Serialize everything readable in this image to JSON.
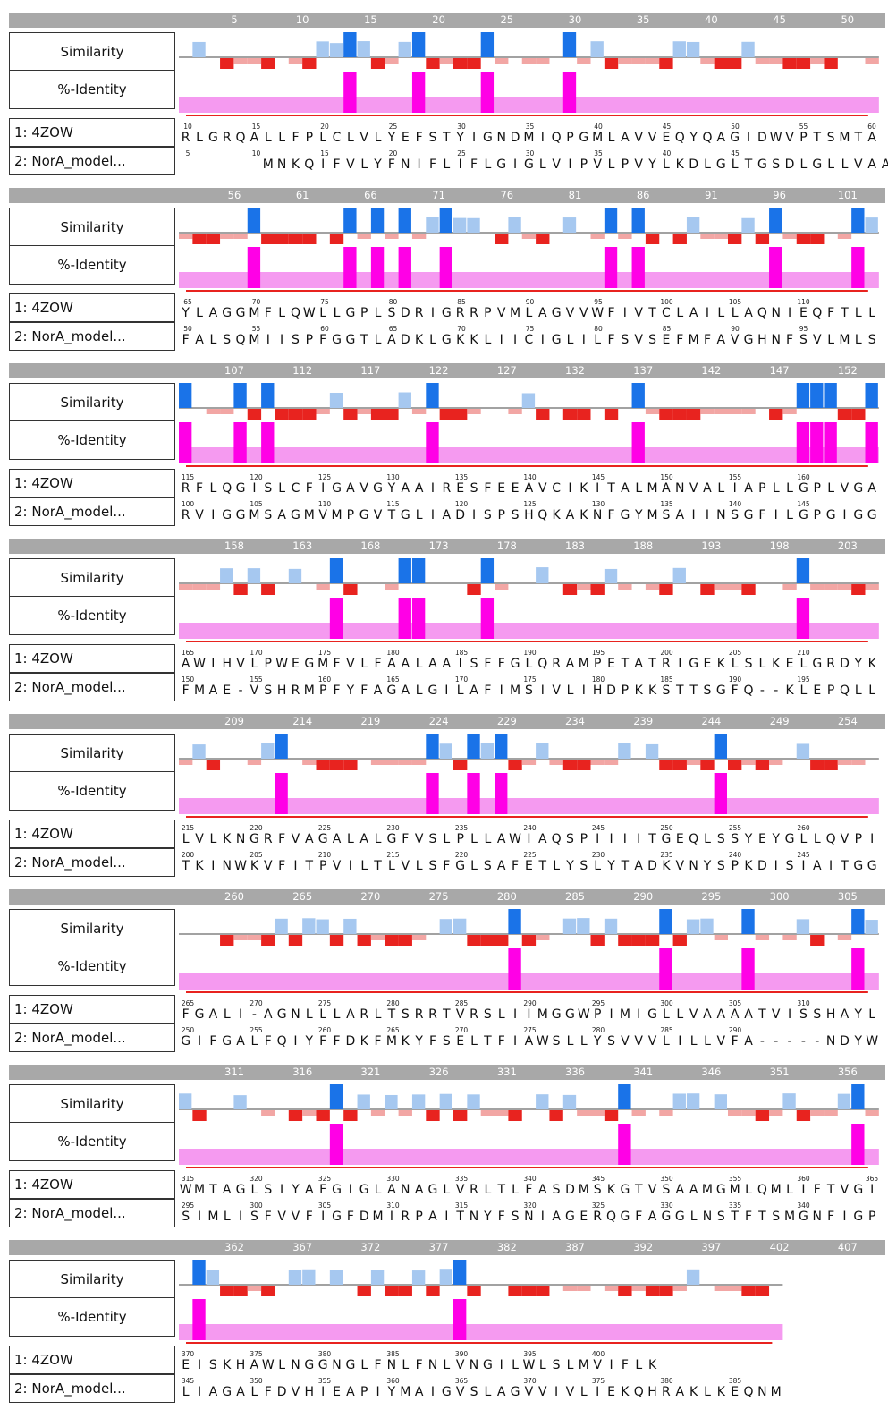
{
  "labels": {
    "similarity": "Similarity",
    "identity": "%-Identity",
    "seq1": "1: 4ZOW",
    "seq2": "2: NorA_model..."
  },
  "colors": {
    "ruler": "#a8a8a8",
    "sim_high": "#1a73e8",
    "sim_low": "#a6c8f0",
    "dissim_high": "#e8231f",
    "dissim_low": "#f2a6a4",
    "identity_bar": "#ff00e6",
    "identity_fill": "#f59af0",
    "ss_helix": "#e8231f",
    "ss_strand": "#1a73e8"
  },
  "blocks": [
    {
      "ruler": [
        "5",
        "10",
        "15",
        "20",
        "25",
        "30",
        "35",
        "40",
        "45",
        "50"
      ],
      "seq1": "RLGRQALLFPLCLVLYEFSTYIGNDMIQPGMLAVVEQYQAGIDWVPTSMTA",
      "seq2": "      MNKQIFVLYFNIFLIFLGIGLVIPVLPVYLKDLGLTGSDLGLLVAA",
      "seq1_ticks": [
        "10",
        "15",
        "20",
        "25",
        "30",
        "35",
        "40",
        "45",
        "50",
        "55",
        "60"
      ],
      "seq2_ticks": [
        "5",
        "10",
        "15",
        "20",
        "25",
        "30",
        "35",
        "40",
        "45"
      ],
      "identity_cols": [
        12,
        17,
        22,
        28
      ]
    },
    {
      "ruler": [
        "56",
        "61",
        "66",
        "71",
        "76",
        "81",
        "86",
        "91",
        "96",
        "101"
      ],
      "seq1": "YLAGGMFLQWLLGPLSDRIGRRPVMLAGVVWFIVTCLAILLAQNIEQFTLL",
      "seq2": "FALSQMIISPFGGTLADKLGKKLIICIGLILFSVSEFMFAVGHNFSVLMLS",
      "seq1_ticks": [
        "65",
        "70",
        "75",
        "80",
        "85",
        "90",
        "95",
        "100",
        "105",
        "110"
      ],
      "seq2_ticks": [
        "50",
        "55",
        "60",
        "65",
        "70",
        "75",
        "80",
        "85",
        "90",
        "95"
      ],
      "identity_cols": [
        5,
        12,
        14,
        16,
        19,
        31,
        33,
        43,
        49
      ]
    },
    {
      "ruler": [
        "107",
        "112",
        "117",
        "122",
        "127",
        "132",
        "137",
        "142",
        "147",
        "152"
      ],
      "seq1": "RFLQGISLCFIGAVGYAAIRESFEEAVCIKITALMANVALIAPLLGPLVGA",
      "seq2": "RVIGGMSAGMVMPGVTGLIADISPSHQKAKNFGYMSAIINSGFILGPGIGG",
      "seq1_ticks": [
        "115",
        "120",
        "125",
        "130",
        "135",
        "140",
        "145",
        "150",
        "155",
        "160"
      ],
      "seq2_ticks": [
        "100",
        "105",
        "110",
        "115",
        "120",
        "125",
        "130",
        "135",
        "140",
        "145"
      ],
      "identity_cols": [
        0,
        4,
        6,
        18,
        33,
        45,
        46,
        47,
        50
      ]
    },
    {
      "ruler": [
        "158",
        "163",
        "168",
        "173",
        "178",
        "183",
        "188",
        "193",
        "198",
        "203"
      ],
      "seq1": "AWIHVLPWEGMFVLFAALAAISFFGLQRAMPETATRIGEKLSLKELGRDYK",
      "seq2": "FMAE-VSHRMPFYFAGALGILAFIMSIVLIHDPKKSTTSGFQ--KLEPQLL",
      "seq1_ticks": [
        "165",
        "170",
        "175",
        "180",
        "185",
        "190",
        "195",
        "200",
        "205",
        "210"
      ],
      "seq2_ticks": [
        "150",
        "155",
        "160",
        "165",
        "170",
        "175",
        "180",
        "185",
        "190",
        "195"
      ],
      "identity_cols": [
        11,
        16,
        17,
        22,
        45
      ]
    },
    {
      "ruler": [
        "209",
        "214",
        "219",
        "224",
        "229",
        "234",
        "239",
        "244",
        "249",
        "254"
      ],
      "seq1": "LVLKNGRFVAGALALGFVSLPLLAWIAQSPIIIITGEQLSSYEYGLLQVPI",
      "seq2": "TKINWKVFITPVILTLVLSFGLSAFETLYSLYTADKVNYSPKDISIAITGG",
      "seq1_ticks": [
        "215",
        "220",
        "225",
        "230",
        "235",
        "240",
        "245",
        "250",
        "255",
        "260"
      ],
      "seq2_ticks": [
        "200",
        "205",
        "210",
        "215",
        "220",
        "225",
        "230",
        "235",
        "240",
        "245"
      ],
      "identity_cols": [
        7,
        18,
        21,
        23,
        39
      ]
    },
    {
      "ruler": [
        "260",
        "265",
        "270",
        "275",
        "280",
        "285",
        "290",
        "295",
        "300",
        "305"
      ],
      "seq1": "FGALI-AGNLLLARLTSRRTVRSLIIMGGWPIMIGLLVAAAATVISSHAYL",
      "seq2": "GIFGALFQIYFFDKFMKYFSELTFIAWSLLYSVVVLILLVFA-----NDYW",
      "seq1_ticks": [
        "265",
        "270",
        "275",
        "280",
        "285",
        "290",
        "295",
        "300",
        "305",
        "310"
      ],
      "seq2_ticks": [
        "250",
        "255",
        "260",
        "265",
        "270",
        "275",
        "280",
        "285",
        "290"
      ],
      "identity_cols": [
        24,
        35,
        41,
        49
      ]
    },
    {
      "ruler": [
        "311",
        "316",
        "321",
        "326",
        "331",
        "336",
        "341",
        "346",
        "351",
        "356"
      ],
      "seq1": "WMTAGLSIYAFGIGLANAGLVRLTLFASDMSKGTVSAAMGMLQMLIFTVGI",
      "seq2": "SIMLISFVVFIGFDMIRPAITNYFSNIAGERQGFAGGLNSTFTSMGNFIGP",
      "seq1_ticks": [
        "315",
        "320",
        "325",
        "330",
        "335",
        "340",
        "345",
        "350",
        "355",
        "360",
        "365"
      ],
      "seq2_ticks": [
        "295",
        "300",
        "305",
        "310",
        "315",
        "320",
        "325",
        "330",
        "335",
        "340"
      ],
      "identity_cols": [
        11,
        32,
        49
      ]
    },
    {
      "ruler": [
        "362",
        "367",
        "372",
        "377",
        "382",
        "387",
        "392",
        "397",
        "402",
        "407"
      ],
      "seq1": "EISKHAWLNGGNGLFNLFNLVNGILWLSLMVIFLK",
      "seq2": "LIAGALFDVHIEAPIYMAIGVSLAGVVIVLIEKQHRAKLKEQNM",
      "seq1_ticks": [
        "370",
        "375",
        "380",
        "385",
        "390",
        "395",
        "400"
      ],
      "seq2_ticks": [
        "345",
        "350",
        "355",
        "360",
        "365",
        "370",
        "375",
        "380",
        "385"
      ],
      "identity_cols": [
        1,
        20
      ]
    }
  ]
}
